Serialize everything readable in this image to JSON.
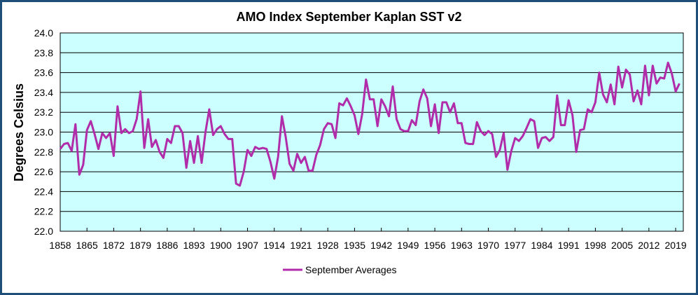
{
  "chart_data": {
    "type": "line",
    "title": "AMO Index September Kaplan SST v2",
    "xlabel": "",
    "ylabel": "Degrees Celsius",
    "ylim": [
      22.0,
      24.0
    ],
    "ytick_step": 0.2,
    "yticks": [
      "22.0",
      "22.2",
      "22.4",
      "22.6",
      "22.8",
      "23.0",
      "23.2",
      "23.4",
      "23.6",
      "23.8",
      "24.0"
    ],
    "xticks": [
      "1858",
      "1865",
      "1872",
      "1879",
      "1886",
      "1893",
      "1900",
      "1907",
      "1914",
      "1921",
      "1928",
      "1935",
      "1942",
      "1949",
      "1956",
      "1963",
      "1970",
      "1977",
      "1984",
      "1991",
      "1998",
      "2005",
      "2012",
      "2019"
    ],
    "x_start": 1858,
    "x_end": 2021,
    "grid": true,
    "legend": "bottom-center",
    "background_color": "#ccffff",
    "series": [
      {
        "name": "September Averages",
        "color": "#b02ca8",
        "values": [
          22.83,
          22.88,
          22.89,
          22.81,
          23.08,
          22.57,
          22.67,
          23.02,
          23.11,
          22.98,
          22.83,
          22.99,
          22.94,
          22.99,
          22.76,
          23.26,
          22.99,
          23.03,
          22.99,
          23.01,
          23.13,
          23.41,
          22.84,
          23.13,
          22.85,
          22.92,
          22.8,
          22.74,
          22.93,
          22.89,
          23.06,
          23.06,
          22.99,
          22.64,
          22.91,
          22.69,
          22.96,
          22.69,
          23.0,
          23.23,
          22.97,
          23.03,
          23.06,
          22.98,
          22.93,
          22.93,
          22.48,
          22.46,
          22.6,
          22.82,
          22.76,
          22.85,
          22.83,
          22.84,
          22.83,
          22.7,
          22.53,
          22.75,
          23.16,
          22.95,
          22.68,
          22.61,
          22.78,
          22.69,
          22.75,
          22.61,
          22.61,
          22.77,
          22.87,
          23.03,
          23.09,
          23.08,
          22.94,
          23.29,
          23.27,
          23.34,
          23.26,
          23.17,
          22.98,
          23.18,
          23.53,
          23.33,
          23.33,
          23.06,
          23.33,
          23.26,
          23.16,
          23.46,
          23.13,
          23.03,
          23.01,
          23.01,
          23.12,
          23.07,
          23.31,
          23.43,
          23.34,
          23.06,
          23.28,
          22.99,
          23.3,
          23.3,
          23.2,
          23.29,
          23.09,
          23.09,
          22.89,
          22.88,
          22.88,
          23.1,
          23.01,
          22.97,
          23.01,
          22.98,
          22.75,
          22.82,
          22.99,
          22.62,
          22.81,
          22.94,
          22.91,
          22.96,
          23.04,
          23.13,
          23.11,
          22.84,
          22.94,
          22.95,
          22.91,
          22.95,
          23.37,
          23.07,
          23.07,
          23.32,
          23.17,
          22.8,
          23.02,
          23.03,
          23.23,
          23.2,
          23.3,
          23.6,
          23.38,
          23.3,
          23.48,
          23.28,
          23.66,
          23.45,
          23.63,
          23.58,
          23.31,
          23.42,
          23.28,
          23.67,
          23.37,
          23.67,
          23.49,
          23.55,
          23.54,
          23.7,
          23.59,
          23.41,
          23.49
        ]
      }
    ]
  }
}
